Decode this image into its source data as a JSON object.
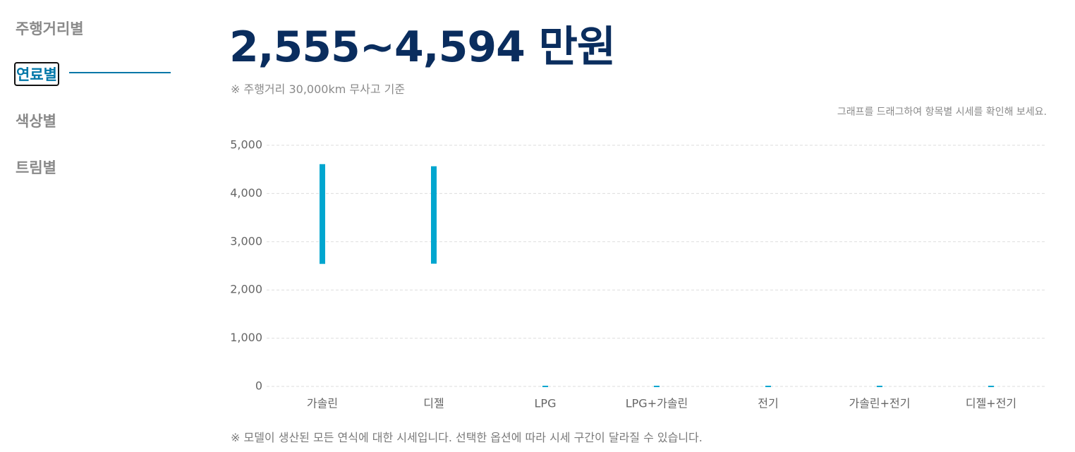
{
  "nav": {
    "items": [
      "주행거리별",
      "연료별",
      "색상별",
      "트림별"
    ]
  },
  "header": {
    "price": "2,555~4,594 만원",
    "note": "※ 주행거리 30,000km 무사고 기준"
  },
  "hint": "그래프를 드래그하여 항목별 시세를 확인해 보세요.",
  "chart_data": {
    "type": "range-bar",
    "categories": [
      "가솔린",
      "디젤",
      "LPG",
      "LPG+가솔린",
      "전기",
      "가솔린+전기",
      "디젤+전기"
    ],
    "values": [
      [
        2555,
        4594
      ],
      [
        2560,
        4550
      ],
      [
        0,
        0
      ],
      [
        0,
        0
      ],
      [
        0,
        0
      ],
      [
        0,
        0
      ],
      [
        0,
        0
      ]
    ],
    "color": "#00a6cf",
    "ylim": [
      0,
      5000
    ],
    "yticks": [
      0,
      {
        "value": 1000,
        "label": "1,000"
      },
      {
        "value": 2000,
        "label": "2,000"
      },
      {
        "value": 3000,
        "label": "3,000"
      },
      {
        "value": 4000,
        "label": "4,000"
      },
      {
        "value": 5000,
        "label": "5,000"
      }
    ],
    "grid": true
  },
  "footnote": "※ 모델이 생산된 모든 연식에 대한 시세입니다. 선택한 옵션에 따라 시세 구간이 달라질 수 있습니다."
}
